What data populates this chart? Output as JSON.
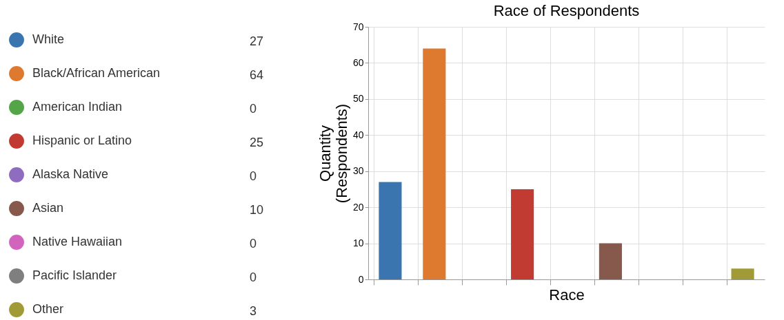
{
  "chart_data": {
    "type": "bar",
    "title": "Race of Respondents",
    "xlabel": "Race",
    "ylabel": "Quantity\n(Respondents)",
    "categories": [
      null,
      null,
      null,
      null,
      null,
      null,
      null,
      null,
      null
    ],
    "series": [
      {
        "name": "White",
        "color": "#3a75b0",
        "values": [
          27,
          null,
          null,
          null,
          null,
          null,
          null,
          null,
          null
        ]
      },
      {
        "name": "Black/African American",
        "color": "#de7a2f",
        "values": [
          null,
          64,
          null,
          null,
          null,
          null,
          null,
          null,
          null
        ]
      },
      {
        "name": "American Indian",
        "color": "#53a548",
        "values": [
          null,
          null,
          0,
          null,
          null,
          null,
          null,
          null,
          null
        ]
      },
      {
        "name": "Hispanic or Latino",
        "color": "#c23b32",
        "values": [
          null,
          null,
          null,
          25,
          null,
          null,
          null,
          null,
          null
        ]
      },
      {
        "name": "Alaska Native",
        "color": "#8f6cbf",
        "values": [
          null,
          null,
          null,
          null,
          0,
          null,
          null,
          null,
          null
        ]
      },
      {
        "name": "Asian",
        "color": "#87584c",
        "values": [
          null,
          null,
          null,
          null,
          null,
          10,
          null,
          null,
          null
        ]
      },
      {
        "name": "Native Hawaiian",
        "color": "#d364be",
        "values": [
          null,
          null,
          null,
          null,
          null,
          null,
          0,
          null,
          null
        ]
      },
      {
        "name": "Pacific Islander",
        "color": "#7f7f7f",
        "values": [
          null,
          null,
          null,
          null,
          null,
          null,
          null,
          0,
          null
        ]
      },
      {
        "name": "Other",
        "color": "#a09a37",
        "values": [
          null,
          null,
          null,
          null,
          null,
          null,
          null,
          null,
          3
        ]
      }
    ],
    "ylim": [
      0,
      70
    ],
    "yticks": [
      0,
      10,
      20,
      30,
      40,
      50,
      60,
      70
    ],
    "annotations": [
      "27",
      "64",
      "0",
      "25",
      "0",
      "10",
      "0",
      "0",
      "3"
    ],
    "grid": true,
    "legend": "left",
    "tick_labels": "y"
  }
}
